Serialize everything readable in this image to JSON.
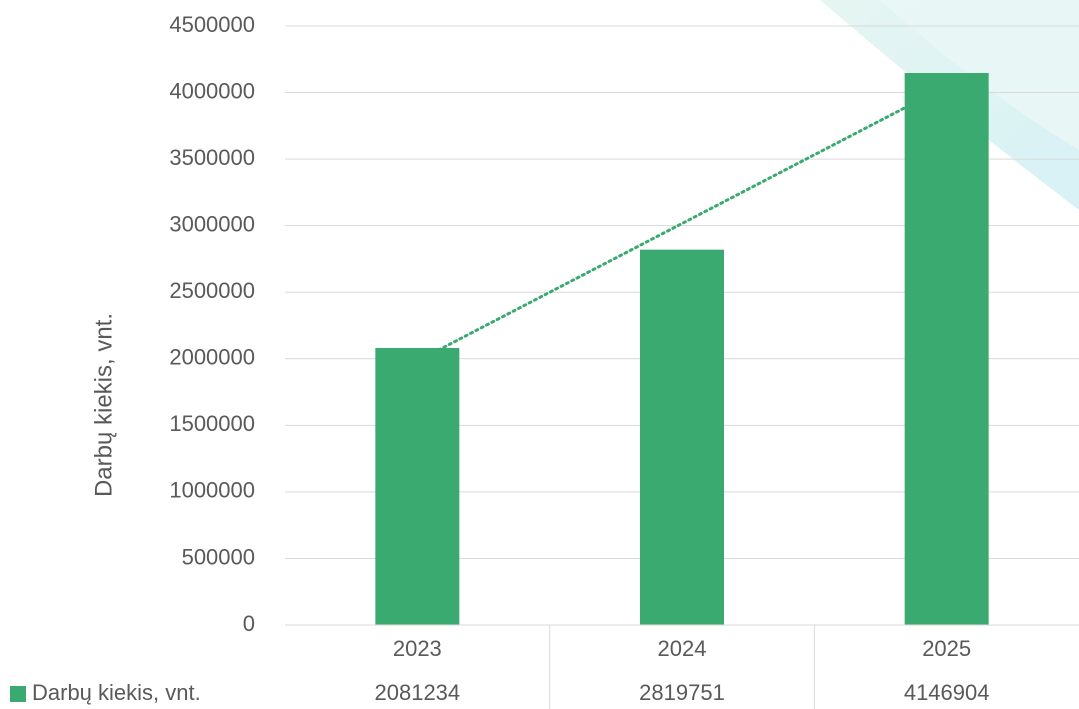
{
  "chart_data": {
    "type": "bar",
    "y_label": "Darbų kiekis, vnt.",
    "categories": [
      "2023",
      "2024",
      "2025"
    ],
    "series": [
      {
        "name": "Darbų kiekis, vnt.",
        "color": "#3aaa70",
        "values": [
          2081234,
          2819751,
          4146904
        ]
      }
    ],
    "ylim": [
      0,
      4500000
    ],
    "yticks": [
      0,
      500000,
      1000000,
      1500000,
      2000000,
      2500000,
      3000000,
      3500000,
      4000000,
      4500000
    ],
    "grid": true,
    "trendline": "linear",
    "data_table": true
  }
}
